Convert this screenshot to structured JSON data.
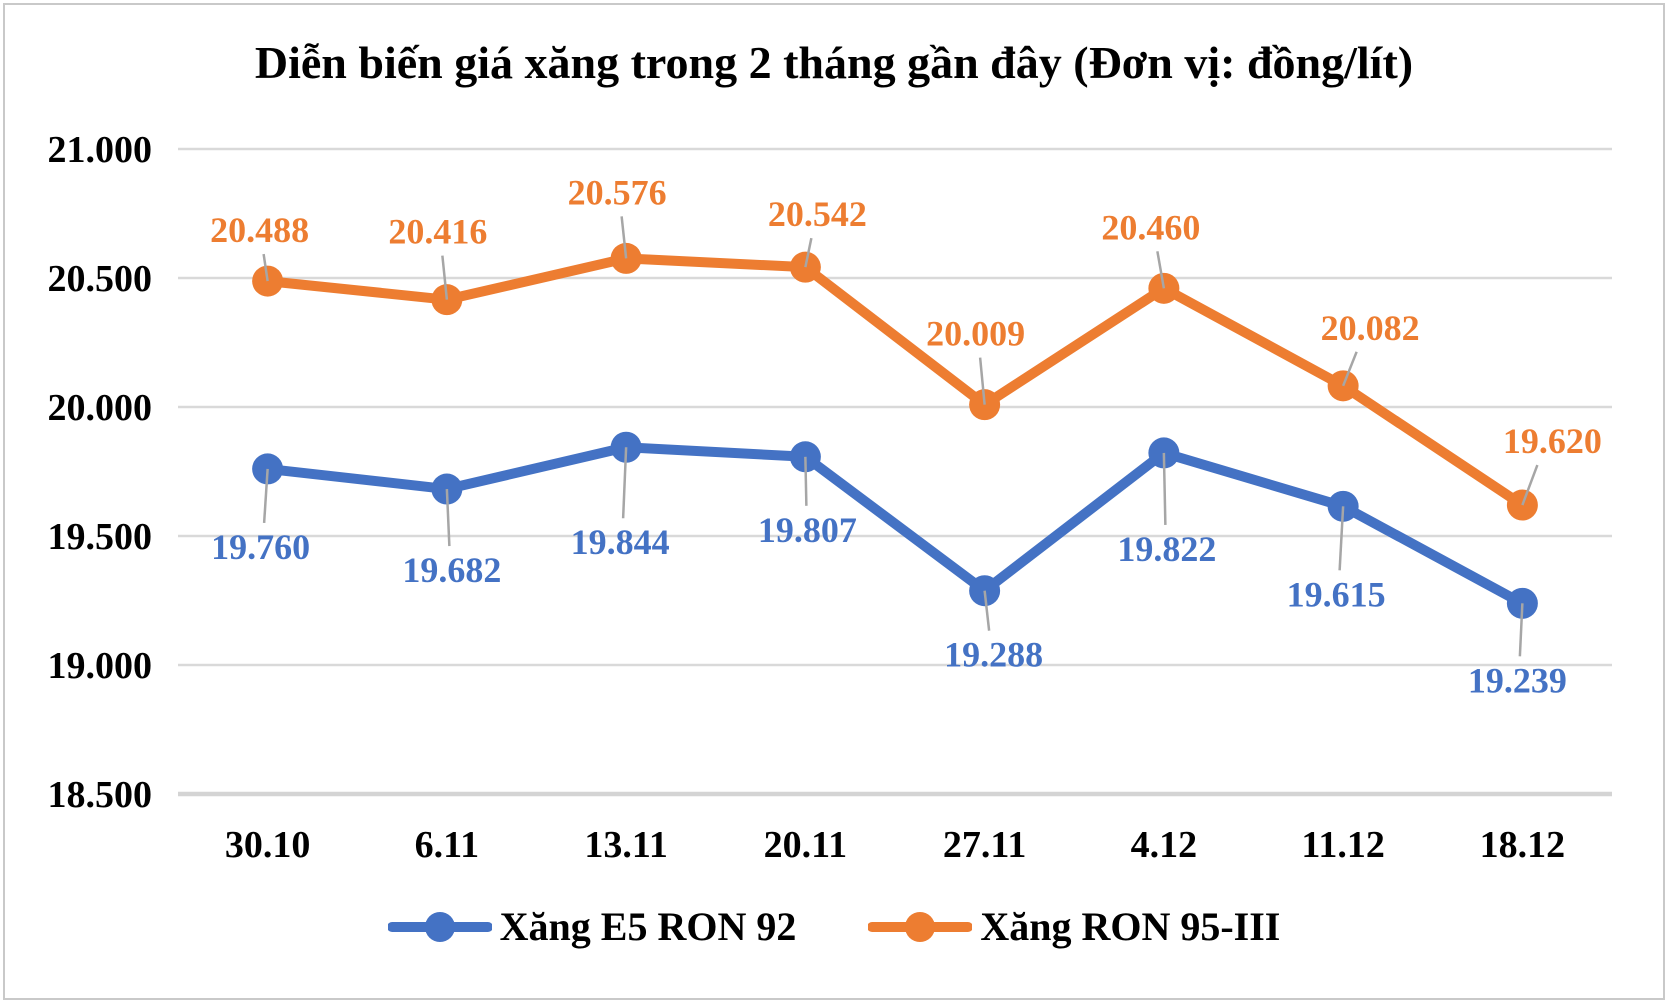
{
  "title": "Diễn biến giá xăng trong 2 tháng gần đây (Đơn vị: đồng/lít)",
  "chart_data": {
    "type": "line",
    "title": "Diễn biến giá xăng trong 2 tháng gần đây (Đơn vị: đồng/lít)",
    "unit": "đồng/lít",
    "categories": [
      "30.10",
      "6.11",
      "13.11",
      "20.11",
      "27.11",
      "4.12",
      "11.12",
      "18.12"
    ],
    "series": [
      {
        "name": "Xăng E5 RON 92",
        "color": "#4472C4",
        "values": [
          19760,
          19682,
          19844,
          19807,
          19288,
          19822,
          19615,
          19239
        ],
        "labels": [
          "19.760",
          "19.682",
          "19.844",
          "19.807",
          "19.288",
          "19.822",
          "19.615",
          "19.239"
        ],
        "label_side": "below",
        "label_offsets": [
          [
            -7,
            78
          ],
          [
            5,
            81
          ],
          [
            -6,
            95
          ],
          [
            2,
            73
          ],
          [
            9,
            64
          ],
          [
            3,
            96
          ],
          [
            -7,
            88
          ],
          [
            -5,
            77
          ]
        ]
      },
      {
        "name": "Xăng RON 95-III",
        "color": "#ED7D31",
        "values": [
          20488,
          20416,
          20576,
          20542,
          20009,
          20460,
          20082,
          19620
        ],
        "labels": [
          "20.488",
          "20.416",
          "20.576",
          "20.542",
          "20.009",
          "20.460",
          "20.082",
          "19.620"
        ],
        "label_side": "above",
        "label_offsets": [
          [
            -8,
            -51
          ],
          [
            -9,
            -68
          ],
          [
            -9,
            -66
          ],
          [
            12,
            -53
          ],
          [
            -9,
            -71
          ],
          [
            -13,
            -61
          ],
          [
            27,
            -58
          ],
          [
            30,
            -64
          ]
        ]
      }
    ],
    "ylim": [
      18500,
      21000
    ],
    "yticks": [
      {
        "value": 21000,
        "label": "21.000"
      },
      {
        "value": 20500,
        "label": "20.500"
      },
      {
        "value": 20000,
        "label": "20.000"
      },
      {
        "value": 19500,
        "label": "19.500"
      },
      {
        "value": 19000,
        "label": "19.000"
      },
      {
        "value": 18500,
        "label": "18.500"
      }
    ],
    "grid": "horizontal",
    "legend_position": "bottom"
  },
  "colors": {
    "series_blue": "#4472C4",
    "series_orange": "#ED7D31",
    "gridline": "#D9D9D9",
    "leader_line": "#A6A6A6",
    "text": "#000000",
    "frame_border": "#C9C9C9",
    "background": "#FFFFFF"
  }
}
